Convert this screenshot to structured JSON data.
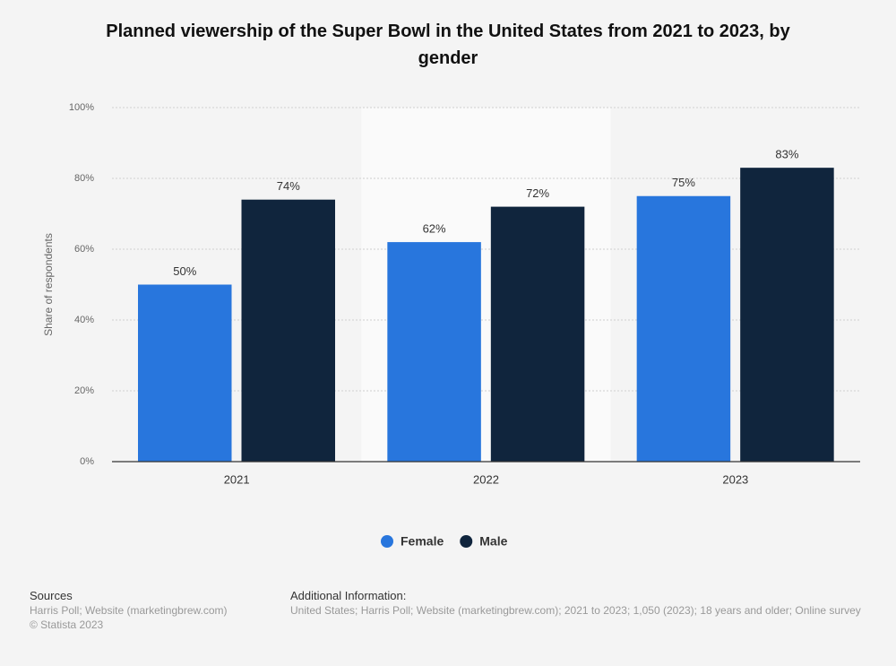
{
  "chart_data": {
    "type": "bar",
    "title": "Planned viewership of the Super Bowl in the United States from 2021 to 2023, by gender",
    "y_label": "Share of respondents",
    "categories": [
      "2021",
      "2022",
      "2023"
    ],
    "series": [
      {
        "name": "Female",
        "color": "#2876dd",
        "values": [
          50,
          62,
          75
        ],
        "value_labels": [
          "50%",
          "62%",
          "75%"
        ]
      },
      {
        "name": "Male",
        "color": "#10253d",
        "values": [
          74,
          72,
          83
        ],
        "value_labels": [
          "74%",
          "72%",
          "83%"
        ]
      }
    ],
    "ylim": [
      0,
      100
    ],
    "yticks": [
      {
        "value": 0,
        "label": "0%"
      },
      {
        "value": 20,
        "label": "20%"
      },
      {
        "value": 40,
        "label": "40%"
      },
      {
        "value": 60,
        "label": "60%"
      },
      {
        "value": 80,
        "label": "80%"
      },
      {
        "value": 100,
        "label": "100%"
      }
    ],
    "grid": true,
    "legend": "bottom"
  },
  "footer": {
    "sources_title": "Sources",
    "sources": "Harris Poll; Website (marketingbrew.com)",
    "copyright": "© Statista 2023",
    "info_title": "Additional Information:",
    "info": "United States; Harris Poll; Website (marketingbrew.com); 2021 to 2023; 1,050 (2023); 18 years and older; Online survey"
  }
}
